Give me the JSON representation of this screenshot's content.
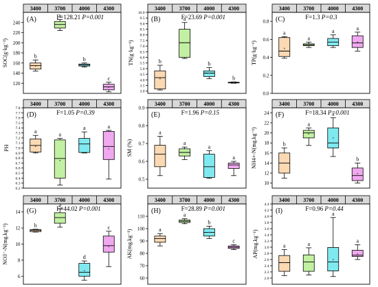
{
  "altitudes": [
    "3400",
    "3700",
    "4000",
    "4300"
  ],
  "colors": [
    "#fbd9b3",
    "#c2f0a2",
    "#7fe9ef",
    "#f0a8ef"
  ],
  "chart_data": [
    {
      "type": "box",
      "panel": "(A)",
      "ylabel": "SOC(g·kg⁻¹)",
      "stat": "F=128.21",
      "p": "P=0.001",
      "ylim": [
        100,
        260
      ],
      "ticks": [
        120,
        140,
        160,
        180,
        200,
        220,
        240
      ],
      "boxes": [
        {
          "min": 144,
          "q1": 148,
          "median": 155,
          "q3": 160,
          "max": 166,
          "mean": 154,
          "letter": "b"
        },
        {
          "min": 224,
          "q1": 229,
          "median": 236,
          "q3": 242,
          "max": 246,
          "mean": 236,
          "letter": "a"
        },
        {
          "min": 152,
          "q1": 154,
          "median": 156,
          "q3": 158,
          "max": 160,
          "mean": 156,
          "letter": "b"
        },
        {
          "min": 103,
          "q1": 107,
          "median": 113,
          "q3": 118,
          "max": 122,
          "mean": 112,
          "letter": "c"
        }
      ]
    },
    {
      "type": "box",
      "panel": "(B)",
      "ylabel": "TN(g·kg⁻¹)",
      "stat": "F=23.69",
      "p": "P=0.001",
      "ylim": [
        2.8,
        10.0
      ],
      "ticks": [
        3.0,
        3.5,
        4.0,
        4.5,
        5.0,
        5.5,
        6.0,
        6.5,
        7.0,
        7.5,
        8.0,
        8.5,
        9.0,
        9.5,
        10.0
      ],
      "tick_labels": [
        "3.0",
        "3.5",
        "4.0",
        "4.5",
        "5.0",
        "5.5",
        "6.0",
        "6.5",
        "7.0",
        "7.5",
        "8.0",
        "8.5",
        "9.0",
        "9.5",
        "10.0"
      ],
      "boxes": [
        {
          "min": 3.1,
          "q1": 3.2,
          "median": 4.2,
          "q3": 4.8,
          "max": 5.3,
          "mean": 4.1,
          "letter": "b"
        },
        {
          "min": 5.9,
          "q1": 6.0,
          "median": 7.3,
          "q3": 8.5,
          "max": 9.1,
          "mean": 7.3,
          "letter": "a"
        },
        {
          "min": 4.1,
          "q1": 4.3,
          "median": 4.6,
          "q3": 4.8,
          "max": 5.1,
          "mean": 4.6,
          "letter": "b"
        },
        {
          "min": 3.7,
          "q1": 3.74,
          "median": 3.76,
          "q3": 3.79,
          "max": 3.82,
          "mean": 3.76,
          "letter": "b"
        }
      ]
    },
    {
      "type": "box",
      "panel": "(C)",
      "ylabel": "TP(g·kg⁻¹)",
      "stat": "F=1.3",
      "p": "P=0.3",
      "ylim": [
        0,
        0.9
      ],
      "ticks": [
        0.0,
        0.2,
        0.4,
        0.6,
        0.8
      ],
      "tick_labels": [
        "0.0",
        "0.2",
        "0.4",
        "0.6",
        "0.8"
      ],
      "boxes": [
        {
          "min": 0.39,
          "q1": 0.41,
          "median": 0.47,
          "q3": 0.62,
          "max": 0.63,
          "mean": 0.5,
          "letter": "a"
        },
        {
          "min": 0.51,
          "q1": 0.53,
          "median": 0.54,
          "q3": 0.55,
          "max": 0.57,
          "mean": 0.54,
          "letter": "a"
        },
        {
          "min": 0.51,
          "q1": 0.53,
          "median": 0.57,
          "q3": 0.61,
          "max": 0.65,
          "mean": 0.57,
          "letter": "a"
        },
        {
          "min": 0.47,
          "q1": 0.51,
          "median": 0.56,
          "q3": 0.64,
          "max": 0.68,
          "mean": 0.57,
          "letter": "a"
        }
      ]
    },
    {
      "type": "box",
      "panel": "(D)",
      "ylabel": "PH",
      "stat": "F=1.05",
      "p": "P=0.39",
      "ylim": [
        6.2,
        7.8
      ],
      "ticks": [
        6.2,
        6.3,
        6.4,
        6.5,
        6.6,
        6.7,
        6.8,
        6.9,
        7.0,
        7.1,
        7.2,
        7.3,
        7.4,
        7.5,
        7.6,
        7.7,
        7.8
      ],
      "tick_labels": [
        "6.2",
        "6.3",
        "6.4",
        "6.5",
        "6.6",
        "6.7",
        "6.8",
        "6.9",
        "7.0",
        "7.1",
        "7.2",
        "7.3",
        "7.4",
        "7.5",
        "7.6",
        "7.7",
        "7.8"
      ],
      "boxes": [
        {
          "min": 6.9,
          "q1": 6.92,
          "median": 7.05,
          "q3": 7.18,
          "max": 7.25,
          "mean": 7.03,
          "letter": "a"
        },
        {
          "min": 6.26,
          "q1": 6.4,
          "median": 6.79,
          "q3": 7.16,
          "max": 7.19,
          "mean": 6.75,
          "letter": "a"
        },
        {
          "min": 6.9,
          "q1": 6.91,
          "median": 7.08,
          "q3": 7.19,
          "max": 7.32,
          "mean": 7.08,
          "letter": "a"
        },
        {
          "min": 6.38,
          "q1": 6.77,
          "median": 7.03,
          "q3": 7.33,
          "max": 7.35,
          "mean": 6.98,
          "letter": "a"
        }
      ]
    },
    {
      "type": "box",
      "panel": "(E)",
      "ylabel": "SM (%)",
      "stat": "F=1.96",
      "p": "P=0.15",
      "ylim": [
        0.45,
        0.9
      ],
      "ticks": [
        0.5,
        0.6,
        0.7,
        0.8,
        0.9
      ],
      "tick_labels": [
        "0.5",
        "0.6",
        "0.7",
        "0.8",
        "0.9"
      ],
      "boxes": [
        {
          "min": 0.52,
          "q1": 0.57,
          "median": 0.64,
          "q3": 0.69,
          "max": 0.74,
          "mean": 0.64,
          "letter": "a"
        },
        {
          "min": 0.61,
          "q1": 0.63,
          "median": 0.65,
          "q3": 0.67,
          "max": 0.68,
          "mean": 0.65,
          "letter": "a"
        },
        {
          "min": 0.505,
          "q1": 0.51,
          "median": 0.57,
          "q3": 0.64,
          "max": 0.66,
          "mean": 0.57,
          "letter": "a"
        },
        {
          "min": 0.52,
          "q1": 0.56,
          "median": 0.58,
          "q3": 0.59,
          "max": 0.6,
          "mean": 0.58,
          "letter": "a"
        }
      ]
    },
    {
      "type": "box",
      "panel": "(F)",
      "ylabel": "NH4+-N(mg.kg⁻¹)",
      "stat": "F=18.34",
      "p": "P=0.001",
      "ylim": [
        9,
        25
      ],
      "ticks": [
        10,
        12,
        14,
        16,
        18,
        20,
        22,
        24
      ],
      "boxes": [
        {
          "min": 11.0,
          "q1": 12.0,
          "median": 14.0,
          "q3": 16.0,
          "max": 17.0,
          "mean": 14.0,
          "letter": "b"
        },
        {
          "min": 17.5,
          "q1": 19.0,
          "median": 20.0,
          "q3": 20.5,
          "max": 21.0,
          "mean": 19.8,
          "letter": "a"
        },
        {
          "min": 15.3,
          "q1": 17.0,
          "median": 18.0,
          "q3": 21.0,
          "max": 23.0,
          "mean": 19.0,
          "letter": "a"
        },
        {
          "min": 10.0,
          "q1": 10.5,
          "median": 11.5,
          "q3": 13.0,
          "max": 14.0,
          "mean": 11.9,
          "letter": "b"
        }
      ]
    },
    {
      "type": "box",
      "panel": "(G)",
      "ylabel": "NO3⁻-N(mg.kg⁻¹)",
      "stat": "F=44.02",
      "p": "P=0.001",
      "ylim": [
        5,
        15
      ],
      "ticks": [
        6,
        8,
        10,
        12,
        14
      ],
      "boxes": [
        {
          "min": 11.5,
          "q1": 11.55,
          "median": 11.7,
          "q3": 11.8,
          "max": 11.85,
          "mean": 11.7,
          "letter": "b"
        },
        {
          "min": 12.1,
          "q1": 12.6,
          "median": 13.3,
          "q3": 13.9,
          "max": 14.4,
          "mean": 13.3,
          "letter": "a"
        },
        {
          "min": 5.5,
          "q1": 6.0,
          "median": 6.5,
          "q3": 7.6,
          "max": 7.9,
          "mean": 6.7,
          "letter": "d"
        },
        {
          "min": 7.2,
          "q1": 9.0,
          "median": 9.8,
          "q3": 11.0,
          "max": 11.6,
          "mean": 9.7,
          "letter": "c"
        }
      ]
    },
    {
      "type": "box",
      "panel": "(H)",
      "ylabel": "AK(mg.kg⁻¹)",
      "stat": "F=28.89",
      "p": "P=0.001",
      "ylim": [
        55,
        120
      ],
      "ticks": [
        60,
        70,
        80,
        90,
        100,
        110
      ],
      "boxes": [
        {
          "min": 86,
          "q1": 89,
          "median": 92,
          "q3": 94,
          "max": 96,
          "mean": 92,
          "letter": "a"
        },
        {
          "min": 104,
          "q1": 105,
          "median": 106,
          "q3": 107,
          "max": 108,
          "mean": 106,
          "letter": "a"
        },
        {
          "min": 92,
          "q1": 94,
          "median": 97,
          "q3": 100,
          "max": 102,
          "mean": 97,
          "letter": "b"
        },
        {
          "min": 83,
          "q1": 84,
          "median": 85,
          "q3": 86,
          "max": 87,
          "mean": 85,
          "letter": "c"
        }
      ]
    },
    {
      "type": "box",
      "panel": "(I)",
      "ylabel": "AP(mg.kg⁻¹)",
      "stat": "F=0.96",
      "p": "P=0.44",
      "ylim": [
        1.8,
        4.4
      ],
      "ticks": [
        2.0,
        2.2,
        2.4,
        2.6,
        2.8,
        3.0,
        3.2,
        3.4,
        3.6,
        3.8,
        4.0,
        4.2,
        4.4
      ],
      "tick_labels": [
        "2.0",
        "2.2",
        "2.4",
        "2.6",
        "2.8",
        "3.0",
        "3.2",
        "3.4",
        "3.6",
        "3.8",
        "4.0",
        "4.2",
        "4.4"
      ],
      "boxes": [
        {
          "min": 2.08,
          "q1": 2.22,
          "median": 2.5,
          "q3": 2.73,
          "max": 2.92,
          "mean": 2.5,
          "letter": "a"
        },
        {
          "min": 2.1,
          "q1": 2.22,
          "median": 2.52,
          "q3": 2.75,
          "max": 2.98,
          "mean": 2.52,
          "letter": "a"
        },
        {
          "min": 2.05,
          "q1": 2.23,
          "median": 2.52,
          "q3": 2.99,
          "max": 3.96,
          "mean": 2.6,
          "letter": "a"
        },
        {
          "min": 2.6,
          "q1": 2.7,
          "median": 2.74,
          "q3": 2.9,
          "max": 3.08,
          "mean": 2.78,
          "letter": "a"
        }
      ]
    }
  ]
}
